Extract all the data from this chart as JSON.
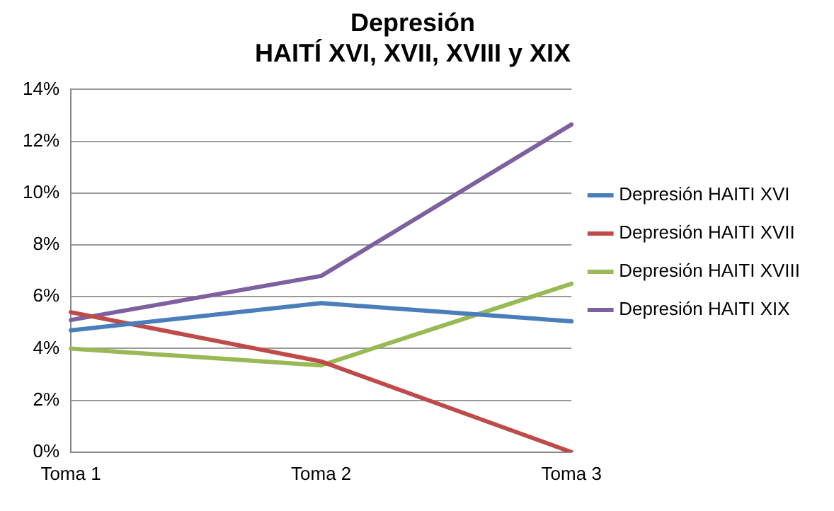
{
  "chart_data": {
    "type": "line",
    "title": [
      "Depresión",
      "HAITÍ XVI, XVII, XVIII y XIX"
    ],
    "categories": [
      "Toma 1",
      "Toma 2",
      "Toma 3"
    ],
    "series": [
      {
        "name": "Depresión HAITI XVI",
        "color": "#4a7ebb",
        "values": [
          4.7,
          5.75,
          5.05
        ]
      },
      {
        "name": "Depresión HAITI XVII",
        "color": "#be4b48",
        "values": [
          5.4,
          3.5,
          0
        ]
      },
      {
        "name": "Depresión HAITI XVIII",
        "color": "#98b954",
        "values": [
          4.0,
          3.35,
          6.5
        ]
      },
      {
        "name": "Depresión HAITI XIX",
        "color": "#7d60a0",
        "values": [
          5.1,
          6.8,
          12.65
        ]
      }
    ],
    "ylim": [
      0,
      14
    ],
    "yticks": [
      {
        "value": 0,
        "label": "0%"
      },
      {
        "value": 2,
        "label": "2%"
      },
      {
        "value": 4,
        "label": "4%"
      },
      {
        "value": 6,
        "label": "6%"
      },
      {
        "value": 8,
        "label": "8%"
      },
      {
        "value": 10,
        "label": "10%"
      },
      {
        "value": 12,
        "label": "12%"
      },
      {
        "value": 14,
        "label": "14%"
      }
    ],
    "grid": "y",
    "legend": "right",
    "marker": "none",
    "line_style": "solid"
  }
}
